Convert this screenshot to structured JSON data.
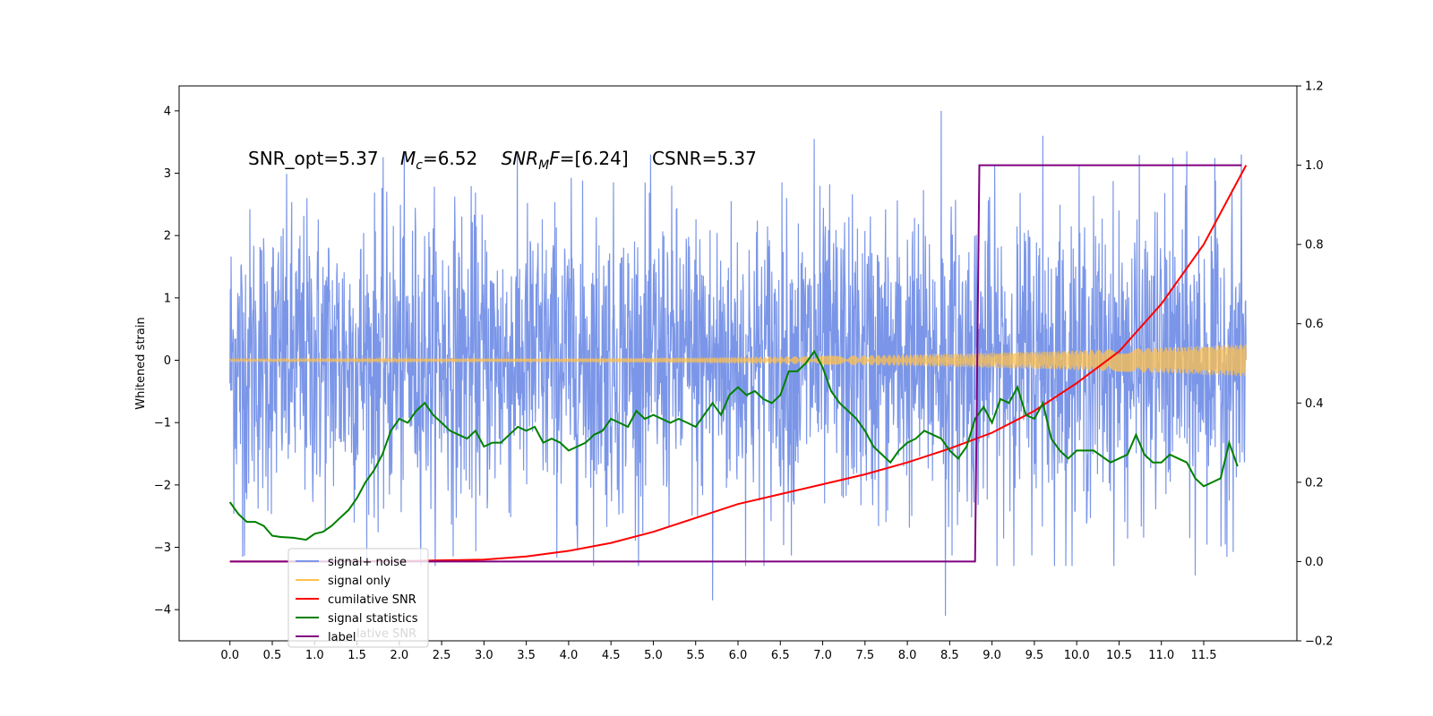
{
  "chart_data": {
    "type": "line",
    "title": "",
    "annotation": {
      "snr_opt": "SNR_opt=5.37",
      "mc_symbol": "M",
      "mc_sub": "c",
      "mc_value": "=6.52",
      "snrmf_symbol": "SNR",
      "snrmf_sub": "M",
      "snrmf_tail": "F",
      "snrmf_value": "=[6.24]",
      "csnr": "CSNR=5.37"
    },
    "xlabel": "",
    "ylabel": "Whitened strain",
    "xlim": [
      -0.6,
      12.6
    ],
    "ylim": [
      -4.5,
      4.4
    ],
    "ylim_right": [
      -0.2,
      1.2
    ],
    "x_ticks": [
      "0.0",
      "0.5",
      "1.0",
      "1.5",
      "2.0",
      "2.5",
      "3.0",
      "3.5",
      "4.0",
      "4.5",
      "5.0",
      "5.5",
      "6.0",
      "6.5",
      "7.0",
      "7.5",
      "8.0",
      "8.5",
      "9.0",
      "9.5",
      "10.0",
      "10.5",
      "11.0",
      "11.5"
    ],
    "y_ticks_left": [
      "4",
      "3",
      "2",
      "1",
      "0",
      "−1",
      "−2",
      "−3",
      "−4"
    ],
    "y_ticks_right": [
      "1.2",
      "1.0",
      "0.8",
      "0.6",
      "0.4",
      "0.2",
      "0.0",
      "−0.2"
    ],
    "series": [
      {
        "name": "signal+ noise",
        "color": "#7b96e8",
        "axis": "left",
        "x_range": [
          0,
          12.0
        ],
        "typical_range": [
          -2.3,
          2.3
        ],
        "notable_peaks": [
          {
            "x": 8.4,
            "y": 4.0
          },
          {
            "x": 9.6,
            "y": 3.6
          },
          {
            "x": 6.9,
            "y": 3.55
          },
          {
            "x": 11.3,
            "y": 3.35
          },
          {
            "x": 5.7,
            "y": -3.85
          },
          {
            "x": 8.45,
            "y": -4.1
          },
          {
            "x": 11.4,
            "y": -3.45
          },
          {
            "x": 0.15,
            "y": -3.15
          }
        ]
      },
      {
        "name": "signal only",
        "color": "#ffc04d",
        "axis": "left",
        "x_range": [
          0,
          12.0
        ],
        "amplitude_start": 0.02,
        "amplitude_end": 0.26
      },
      {
        "name": "cumilative SNR",
        "color": "#ff0000",
        "axis": "right",
        "x": [
          0,
          1,
          2,
          3,
          3.5,
          4,
          4.5,
          5,
          5.5,
          6,
          6.5,
          7,
          7.5,
          8,
          8.5,
          9,
          9.5,
          10,
          10.5,
          11,
          11.5,
          12.0
        ],
        "values": [
          0.0,
          0.0,
          0.001,
          0.005,
          0.013,
          0.027,
          0.047,
          0.075,
          0.11,
          0.145,
          0.17,
          0.195,
          0.22,
          0.25,
          0.285,
          0.325,
          0.38,
          0.45,
          0.53,
          0.65,
          0.8,
          1.0
        ]
      },
      {
        "name": "signal statistics",
        "color": "#008000",
        "axis": "right",
        "x": [
          0,
          0.1,
          0.2,
          0.3,
          0.4,
          0.5,
          0.6,
          0.75,
          0.9,
          1.0,
          1.1,
          1.2,
          1.3,
          1.4,
          1.5,
          1.6,
          1.7,
          1.8,
          1.9,
          2.0,
          2.1,
          2.2,
          2.3,
          2.4,
          2.5,
          2.6,
          2.7,
          2.8,
          2.9,
          3.0,
          3.1,
          3.2,
          3.3,
          3.4,
          3.5,
          3.6,
          3.7,
          3.8,
          3.9,
          4.0,
          4.1,
          4.2,
          4.3,
          4.4,
          4.5,
          4.6,
          4.7,
          4.8,
          4.9,
          5.0,
          5.1,
          5.2,
          5.3,
          5.4,
          5.5,
          5.6,
          5.7,
          5.8,
          5.9,
          6.0,
          6.1,
          6.2,
          6.3,
          6.4,
          6.5,
          6.6,
          6.7,
          6.8,
          6.9,
          7.0,
          7.1,
          7.2,
          7.3,
          7.4,
          7.5,
          7.6,
          7.7,
          7.8,
          7.9,
          8.0,
          8.1,
          8.2,
          8.3,
          8.4,
          8.5,
          8.6,
          8.7,
          8.8,
          8.9,
          9.0,
          9.1,
          9.2,
          9.3,
          9.4,
          9.5,
          9.6,
          9.7,
          9.8,
          9.9,
          10.0,
          10.2,
          10.4,
          10.6,
          10.7,
          10.8,
          10.9,
          11.0,
          11.1,
          11.2,
          11.3,
          11.4,
          11.5,
          11.6,
          11.7,
          11.8,
          11.9
        ],
        "values": [
          0.15,
          0.12,
          0.1,
          0.1,
          0.09,
          0.065,
          0.062,
          0.06,
          0.055,
          0.07,
          0.075,
          0.09,
          0.11,
          0.13,
          0.16,
          0.2,
          0.23,
          0.27,
          0.33,
          0.36,
          0.35,
          0.38,
          0.4,
          0.37,
          0.35,
          0.33,
          0.32,
          0.31,
          0.33,
          0.29,
          0.3,
          0.3,
          0.32,
          0.34,
          0.33,
          0.34,
          0.3,
          0.31,
          0.3,
          0.28,
          0.29,
          0.3,
          0.32,
          0.33,
          0.36,
          0.35,
          0.34,
          0.38,
          0.36,
          0.37,
          0.36,
          0.35,
          0.36,
          0.35,
          0.34,
          0.37,
          0.4,
          0.37,
          0.42,
          0.44,
          0.42,
          0.43,
          0.41,
          0.4,
          0.42,
          0.48,
          0.48,
          0.5,
          0.53,
          0.49,
          0.43,
          0.4,
          0.38,
          0.36,
          0.33,
          0.29,
          0.27,
          0.25,
          0.28,
          0.3,
          0.31,
          0.33,
          0.32,
          0.31,
          0.28,
          0.26,
          0.29,
          0.36,
          0.39,
          0.35,
          0.41,
          0.4,
          0.44,
          0.37,
          0.36,
          0.4,
          0.31,
          0.28,
          0.26,
          0.28,
          0.28,
          0.25,
          0.27,
          0.32,
          0.27,
          0.25,
          0.25,
          0.27,
          0.26,
          0.25,
          0.21,
          0.19,
          0.2,
          0.21,
          0.3,
          0.24
        ]
      },
      {
        "name": "label",
        "color": "#800080",
        "axis": "right",
        "x": [
          0,
          8.8,
          8.85,
          11.95
        ],
        "values": [
          0.0,
          0.0,
          1.0,
          1.0
        ]
      }
    ],
    "legend": {
      "placement": "lower-left",
      "entries": [
        "signal+ noise",
        "signal only",
        "cumilative SNR",
        "signal statistics",
        "label"
      ],
      "ghost_text": "lative SNR"
    },
    "grid": false
  }
}
